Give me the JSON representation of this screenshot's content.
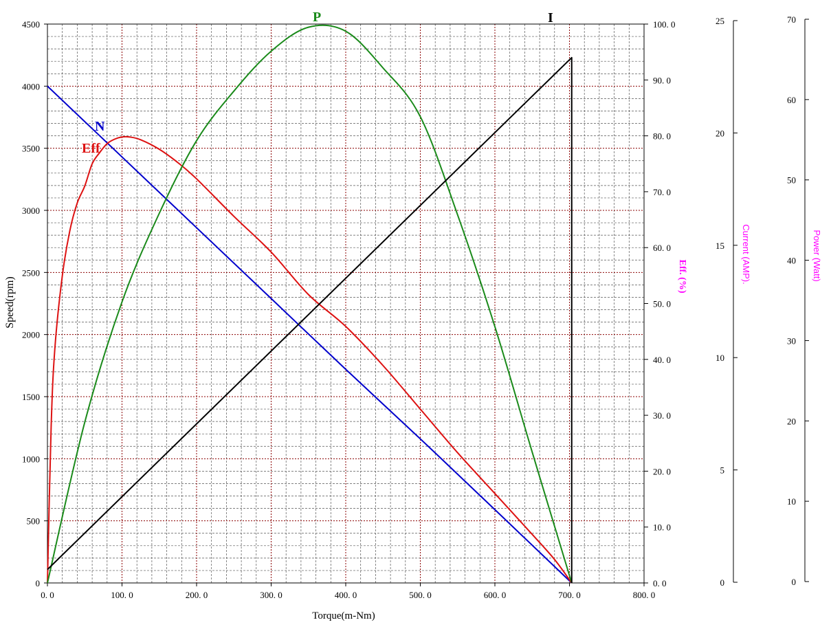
{
  "chart_data": {
    "type": "line",
    "xlabel": "Torque(m-Nm)",
    "x_ticks": [
      "0. 0",
      "100. 0",
      "200. 0",
      "300. 0",
      "400. 0",
      "500. 0",
      "600. 0",
      "700. 0",
      "800. 0"
    ],
    "xlim": [
      0,
      800
    ],
    "axes": {
      "speed": {
        "label": "Speed(rpm)",
        "lim": [
          0,
          4500
        ],
        "ticks": [
          "0",
          "500",
          "1000",
          "1500",
          "2000",
          "2500",
          "3000",
          "3500",
          "4000",
          "4500"
        ],
        "color": "#000000"
      },
      "eff": {
        "label": "Eff. (%)",
        "lim": [
          0,
          100
        ],
        "ticks": [
          "0. 0",
          "10. 0",
          "20. 0",
          "30. 0",
          "40. 0",
          "50. 0",
          "60. 0",
          "70. 0",
          "80. 0",
          "90. 0",
          "100. 0"
        ],
        "color": "#ff00ff"
      },
      "current": {
        "label": "Current (AMP).",
        "lim": [
          0,
          25
        ],
        "ticks": [
          "0",
          "5",
          "10",
          "15",
          "20",
          "25"
        ],
        "color": "#ff00ff"
      },
      "power": {
        "label": "Power (Watt)",
        "lim": [
          0,
          70
        ],
        "ticks": [
          "0",
          "10",
          "20",
          "30",
          "40",
          "50",
          "60",
          "70"
        ],
        "color": "#ff00ff"
      }
    },
    "series": [
      {
        "name": "N",
        "axis": "speed",
        "color": "#0000cc",
        "x": [
          0,
          100,
          200,
          300,
          400,
          500,
          600,
          703
        ],
        "y": [
          4000,
          3430,
          2860,
          2290,
          1720,
          1160,
          590,
          0
        ]
      },
      {
        "name": "Eff",
        "axis": "eff",
        "color": "#dd1111",
        "x": [
          0,
          5,
          10,
          20,
          30,
          40,
          50,
          60,
          70,
          80,
          90,
          100,
          110,
          125,
          150,
          175,
          200,
          250,
          300,
          350,
          400,
          450,
          500,
          550,
          600,
          650,
          680,
          703
        ],
        "y": [
          0,
          28,
          42,
          55,
          63,
          68,
          71,
          75,
          77,
          78.6,
          79.4,
          79.8,
          79.8,
          79.3,
          77.6,
          75.2,
          72.3,
          65.6,
          59.2,
          51.6,
          45.9,
          38.9,
          31.1,
          23.3,
          16.0,
          8.7,
          4.2,
          0
        ]
      },
      {
        "name": "P",
        "axis": "power",
        "color": "#1a8a1a",
        "x": [
          0,
          50,
          100,
          150,
          200,
          250,
          300,
          350,
          400,
          450,
          500,
          550,
          600,
          650,
          703
        ],
        "y": [
          0,
          20.1,
          35.2,
          46.3,
          55.4,
          61.6,
          66.6,
          69.6,
          69.1,
          64.5,
          58.4,
          46.1,
          32.1,
          16.4,
          0
        ]
      },
      {
        "name": "I",
        "axis": "current",
        "color": "#000000",
        "x": [
          0,
          703,
          703
        ],
        "y": [
          0.6,
          23.5,
          0
        ]
      }
    ],
    "grid": true
  }
}
